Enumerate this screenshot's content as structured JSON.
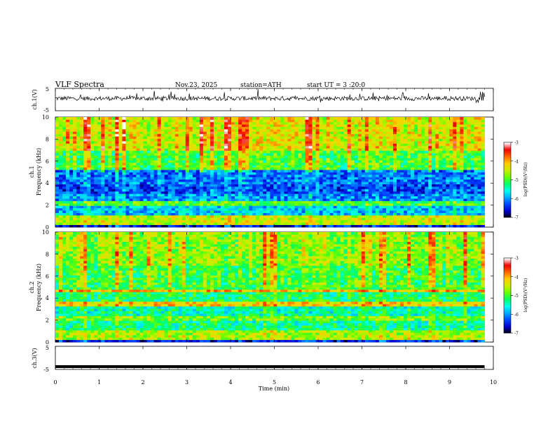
{
  "header": {
    "title": "VLF Spectra",
    "date": "Nov.23, 2025",
    "station": "station=ATH",
    "start": "start UT = 3 :20:0"
  },
  "colors": {
    "colormap": [
      "#000000",
      "#0000cc",
      "#0044ff",
      "#00aaff",
      "#00ffee",
      "#00ff66",
      "#66ff00",
      "#ccee00",
      "#ffcc00",
      "#ff6600",
      "#ee0000",
      "#ffffff"
    ]
  },
  "chart_data": [
    {
      "type": "line",
      "panel": "ch1-waveform",
      "ylabel": "ch.1(V)",
      "yticks": [
        "5",
        "-5"
      ],
      "ylim": [
        -5,
        5
      ],
      "x_range_min": [
        0,
        9.8
      ],
      "approx_level_V": 0.5,
      "approx_noise_amplitude_V": 1.2
    },
    {
      "type": "heatmap",
      "panel": "ch1-spectrogram",
      "ylabel_top": "ch.1",
      "ylabel": "Frequency (kHz)",
      "yticks": [
        "0",
        "2",
        "4",
        "6",
        "8",
        "10"
      ],
      "ylim": [
        0,
        10
      ],
      "x_range_min": [
        0,
        9.8
      ],
      "colorbar": {
        "label": "log(PSD)(V²/Hz)",
        "ticks": [
          "-3",
          "-4",
          "-5",
          "-6",
          "-7"
        ],
        "range": [
          -7,
          -3
        ]
      },
      "bands": [
        {
          "f": [
            0,
            0.3
          ],
          "level": -6.5
        },
        {
          "f": [
            0.3,
            1.0
          ],
          "level": -4.5
        },
        {
          "f": [
            1.0,
            2.0
          ],
          "level": -5.8
        },
        {
          "f": [
            2.0,
            2.4
          ],
          "level": -5.0
        },
        {
          "f": [
            2.4,
            3.1
          ],
          "level": -6.0
        },
        {
          "f": [
            3.1,
            4.0
          ],
          "level": -6.3
        },
        {
          "f": [
            4.0,
            5.2
          ],
          "level": -6.1
        },
        {
          "f": [
            5.2,
            7.0
          ],
          "level": -5.0
        },
        {
          "f": [
            7.0,
            10.0
          ],
          "level": -4.4
        }
      ]
    },
    {
      "type": "heatmap",
      "panel": "ch2-spectrogram",
      "ylabel_top": "ch.2",
      "ylabel": "Frequency (kHz)",
      "yticks": [
        "0",
        "2",
        "4",
        "6",
        "8",
        "10"
      ],
      "ylim": [
        0,
        10
      ],
      "x_range_min": [
        0,
        9.8
      ],
      "colorbar": {
        "label": "log(PSD)(V²/Hz)",
        "ticks": [
          "-3",
          "-4",
          "-5",
          "-6",
          "-7"
        ],
        "range": [
          -7,
          -3
        ]
      },
      "bands": [
        {
          "f": [
            0,
            0.3
          ],
          "level": -6.5
        },
        {
          "f": [
            0.3,
            1.0
          ],
          "level": -4.6
        },
        {
          "f": [
            1.0,
            2.0
          ],
          "level": -5.3
        },
        {
          "f": [
            2.0,
            2.3
          ],
          "level": -4.8
        },
        {
          "f": [
            2.3,
            3.3
          ],
          "level": -5.4
        },
        {
          "f": [
            3.3,
            3.6
          ],
          "level": -4.2
        },
        {
          "f": [
            3.6,
            4.5
          ],
          "level": -5.2
        },
        {
          "f": [
            4.5,
            4.7
          ],
          "level": -4.0
        },
        {
          "f": [
            4.7,
            7.0
          ],
          "level": -5.0
        },
        {
          "f": [
            7.0,
            10.0
          ],
          "level": -4.7
        }
      ]
    },
    {
      "type": "line",
      "panel": "ch3-waveform",
      "ylabel": "ch.3(V)",
      "yticks": [
        "5",
        "-5"
      ],
      "ylim": [
        -5,
        5
      ],
      "x_range_min": [
        0,
        9.8
      ],
      "approx_level_V": -3.8
    }
  ],
  "xaxis": {
    "label": "Time (min)",
    "ticks": [
      "0",
      "1",
      "2",
      "3",
      "4",
      "5",
      "6",
      "7",
      "8",
      "9",
      "10"
    ],
    "xlim": [
      0,
      10
    ]
  }
}
